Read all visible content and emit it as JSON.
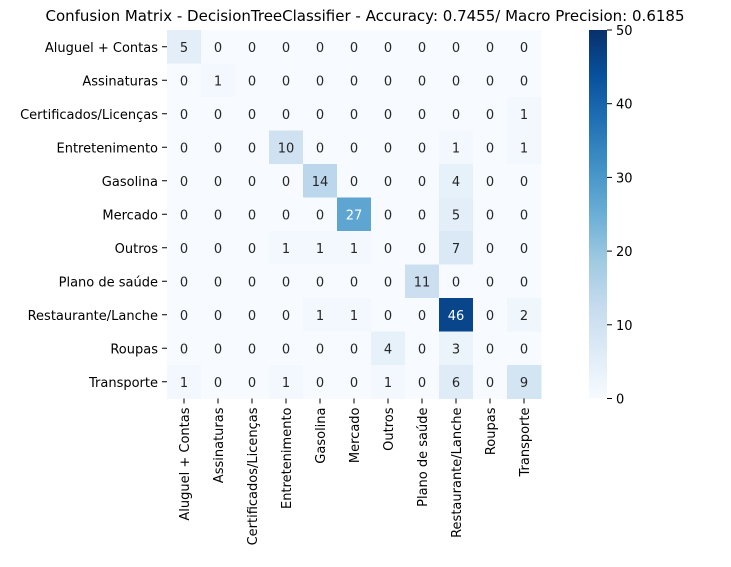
{
  "chart_data": {
    "type": "heatmap",
    "title": "Confusion Matrix - DecisionTreeClassifier - Accuracy: 0.7455/ Macro Precision: 0.6185",
    "xlabel": "",
    "ylabel": "",
    "row_labels": [
      "Aluguel + Contas",
      "Assinaturas",
      "Certificados/Licenças",
      "Entretenimento",
      "Gasolina",
      "Mercado",
      "Outros",
      "Plano de saúde",
      "Restaurante/Lanche",
      "Roupas",
      "Transporte"
    ],
    "col_labels": [
      "Aluguel + Contas",
      "Assinaturas",
      "Certificados/Licenças",
      "Entretenimento",
      "Gasolina",
      "Mercado",
      "Outros",
      "Plano de saúde",
      "Restaurante/Lanche",
      "Roupas",
      "Transporte"
    ],
    "values": [
      [
        5,
        0,
        0,
        0,
        0,
        0,
        0,
        0,
        0,
        0,
        0
      ],
      [
        0,
        1,
        0,
        0,
        0,
        0,
        0,
        0,
        0,
        0,
        0
      ],
      [
        0,
        0,
        0,
        0,
        0,
        0,
        0,
        0,
        0,
        0,
        1
      ],
      [
        0,
        0,
        0,
        10,
        0,
        0,
        0,
        0,
        1,
        0,
        1
      ],
      [
        0,
        0,
        0,
        0,
        14,
        0,
        0,
        0,
        4,
        0,
        0
      ],
      [
        0,
        0,
        0,
        0,
        0,
        27,
        0,
        0,
        5,
        0,
        0
      ],
      [
        0,
        0,
        0,
        1,
        1,
        1,
        0,
        0,
        7,
        0,
        0
      ],
      [
        0,
        0,
        0,
        0,
        0,
        0,
        0,
        11,
        0,
        0,
        0
      ],
      [
        0,
        0,
        0,
        0,
        1,
        1,
        0,
        0,
        46,
        0,
        2
      ],
      [
        0,
        0,
        0,
        0,
        0,
        0,
        4,
        0,
        3,
        0,
        0
      ],
      [
        1,
        0,
        0,
        1,
        0,
        0,
        1,
        0,
        6,
        0,
        9
      ]
    ],
    "vmin": 0,
    "vmax": 50,
    "colorbar_ticks": [
      0,
      10,
      20,
      30,
      40,
      50
    ],
    "colormap": "Blues",
    "colormap_stops": [
      "#f7fbff",
      "#deebf7",
      "#c6dbef",
      "#9ecae1",
      "#6baed6",
      "#4292c6",
      "#2171b5",
      "#08519c",
      "#08306b"
    ],
    "annot_dark_color": "#262626",
    "annot_light_color": "#ffffff",
    "grid": false
  }
}
